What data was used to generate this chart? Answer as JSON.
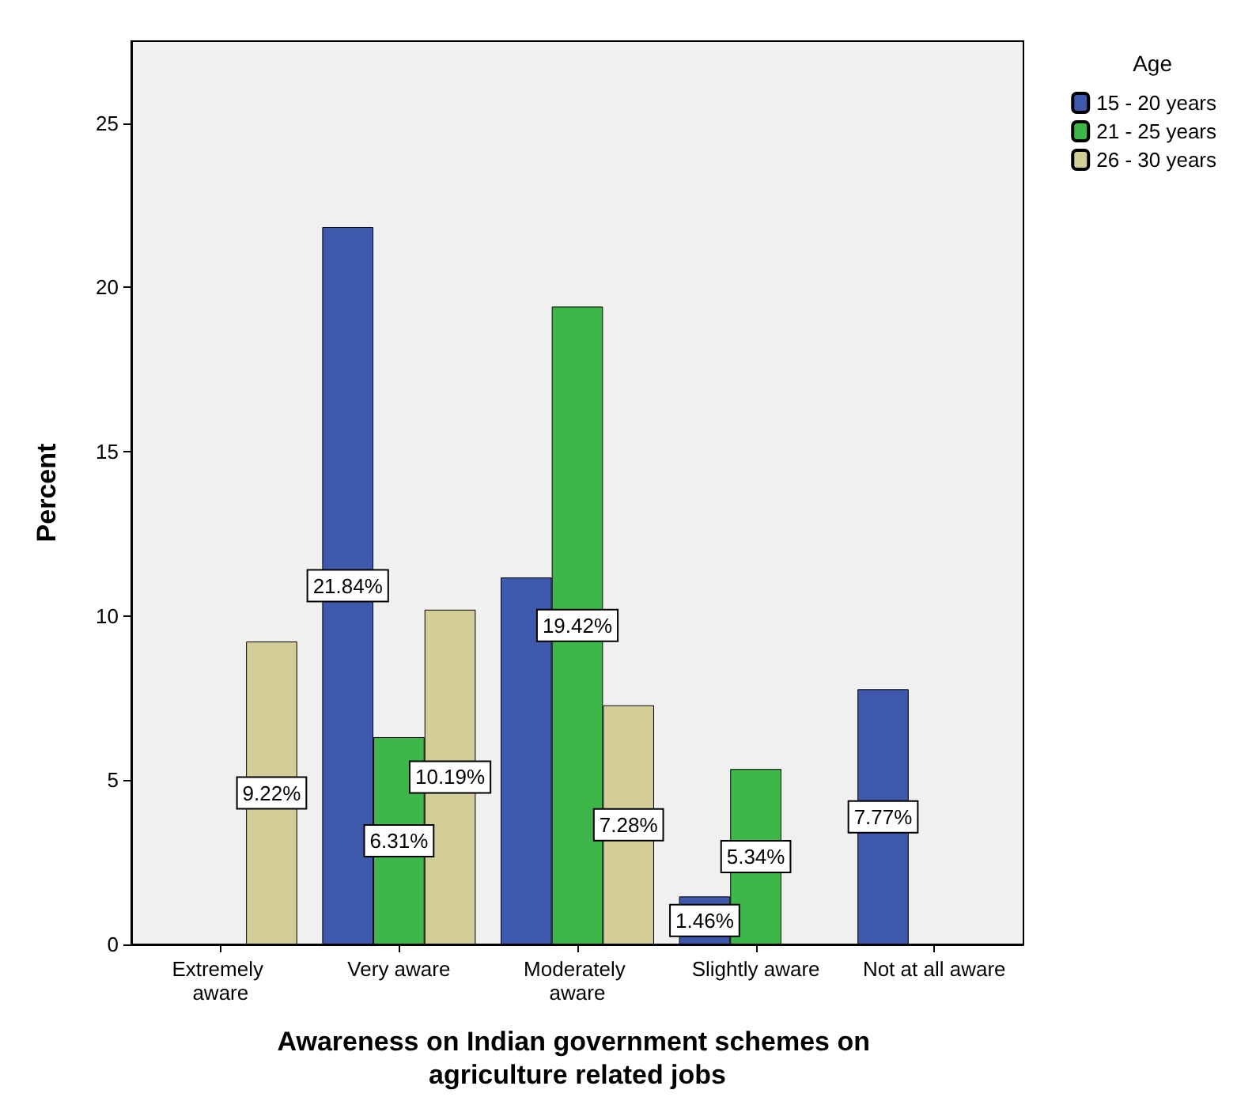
{
  "chart_data": {
    "type": "bar",
    "xlabel": "Awareness on Indian government schemes on agriculture related jobs",
    "ylabel": "Percent",
    "legend_title": "Age",
    "legend": "top right",
    "grid": false,
    "categories": [
      "Extremely aware",
      "Very aware",
      "Moderately aware",
      "Slightly aware",
      "Not at all aware"
    ],
    "ylim": [
      0,
      27.5
    ],
    "yticks": [
      0,
      5,
      10,
      15,
      20,
      25
    ],
    "series": [
      {
        "name": "15 - 20 years",
        "color": "#3e58ac",
        "values": [
          null,
          21.84,
          11.17,
          1.46,
          7.77
        ],
        "value_labels": [
          null,
          "21.84%",
          null,
          "1.46%",
          "7.77%"
        ]
      },
      {
        "name": "21 - 25 years",
        "color": "#3eb74a",
        "values": [
          null,
          6.31,
          19.42,
          5.34,
          null
        ],
        "value_labels": [
          null,
          "6.31%",
          "19.42%",
          "5.34%",
          null
        ]
      },
      {
        "name": "26 - 30 years",
        "color": "#d3ce97",
        "values": [
          9.22,
          10.19,
          7.28,
          null,
          null
        ],
        "value_labels": [
          "9.22%",
          "10.19%",
          "7.28%",
          null,
          null
        ]
      }
    ]
  }
}
